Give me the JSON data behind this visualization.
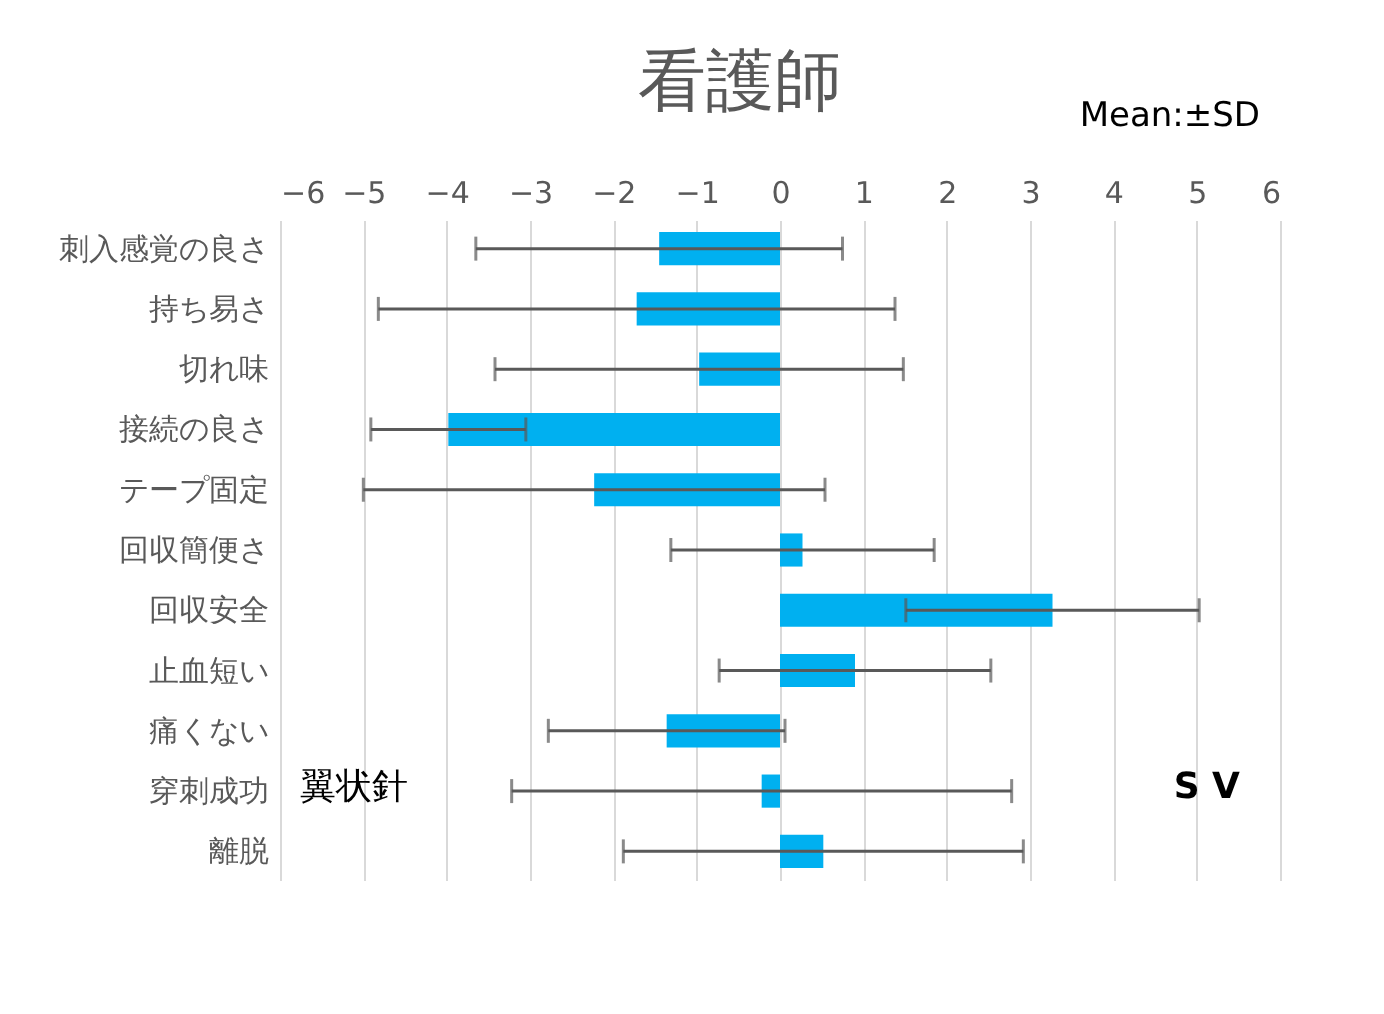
{
  "chart_data": {
    "type": "bar",
    "orientation": "horizontal",
    "title": "看護師",
    "annotations": [
      "Mean:±SD",
      "翼状針",
      "S V"
    ],
    "categories": [
      "刺入感覚の良さ",
      "持ち易さ",
      "切れ味",
      "接続の良さ",
      "テープ固定",
      "回収簡便さ",
      "回収安全",
      "止血短い",
      "痛くない",
      "穿刺成功",
      "離脱"
    ],
    "values": [
      -1.45,
      -1.72,
      -0.97,
      -3.98,
      -2.23,
      0.27,
      3.27,
      0.9,
      -1.36,
      -0.22,
      0.52
    ],
    "errors": [
      2.2,
      3.1,
      2.45,
      0.93,
      2.77,
      1.58,
      1.76,
      1.63,
      1.42,
      3.0,
      2.4
    ],
    "color": "#00b0f0",
    "xlim": [
      -6,
      6
    ],
    "xticks": [
      -6,
      -5,
      -4,
      -3,
      -2,
      -1,
      0,
      1,
      2,
      3,
      4,
      5,
      6
    ],
    "grid": "x"
  }
}
